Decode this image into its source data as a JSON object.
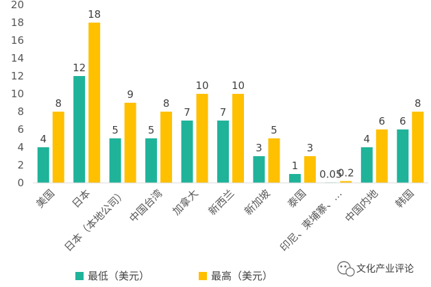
{
  "chart_data": {
    "type": "bar",
    "categories": [
      "美国",
      "日本",
      "日本（本地公司）",
      "中国台湾",
      "加拿大",
      "新西兰",
      "新加坡",
      "泰国",
      "印尼、柬埔寨、…",
      "中国内地",
      "韩国"
    ],
    "series": [
      {
        "name": "最低（美元）",
        "values": [
          4,
          12,
          5,
          5,
          7,
          7,
          3,
          1,
          0.05,
          4,
          6
        ],
        "color": "#1FB39A"
      },
      {
        "name": "最高（美元）",
        "values": [
          8,
          18,
          9,
          8,
          10,
          10,
          5,
          3,
          0.2,
          6,
          8
        ],
        "color": "#FFC000"
      }
    ],
    "value_labels": [
      [
        "4",
        "12",
        "5",
        "5",
        "7",
        "7",
        "3",
        "1",
        "0.05",
        "4",
        "6"
      ],
      [
        "8",
        "18",
        "9",
        "8",
        "10",
        "10",
        "5",
        "3",
        "0.2",
        "6",
        "8"
      ]
    ],
    "y_ticks": [
      "0",
      "2",
      "4",
      "6",
      "8",
      "10",
      "12",
      "14",
      "16",
      "18",
      "20"
    ],
    "ylim": [
      0,
      20
    ],
    "grid": false,
    "legend_position": "bottom",
    "title": "",
    "xlabel": "",
    "ylabel": ""
  },
  "watermark": {
    "text": "文化产业评论",
    "icon": "wechat-icon"
  }
}
